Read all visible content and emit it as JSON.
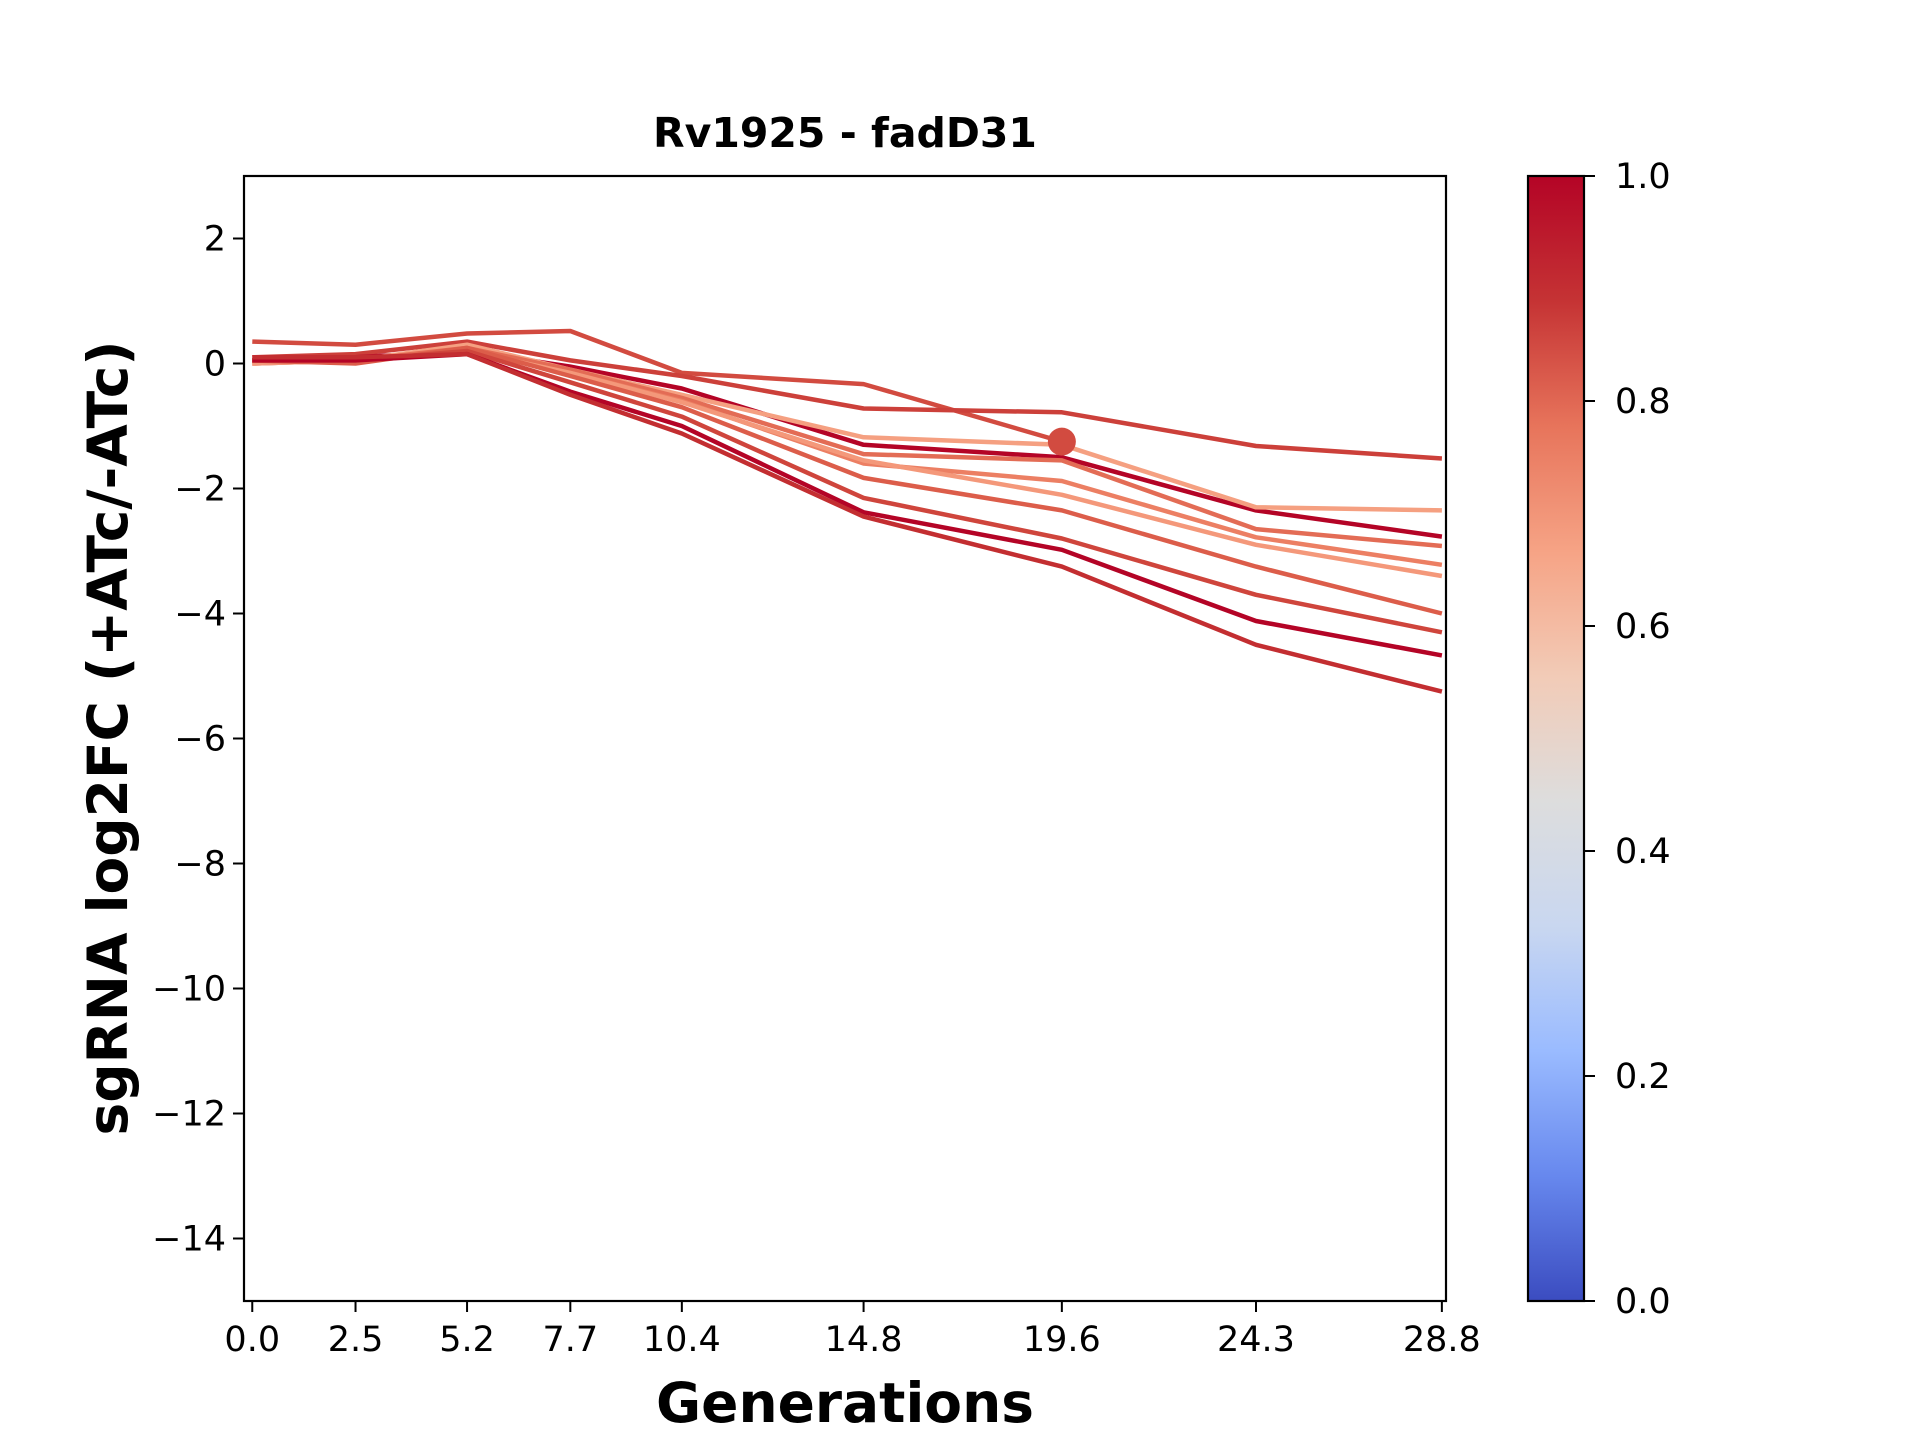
{
  "chart_data": {
    "type": "line",
    "title": "Rv1925 - fadD31",
    "xlabel": "Generations",
    "ylabel": "sgRNA log2FC (+ATc/-ATc)",
    "x": [
      0.0,
      2.5,
      5.2,
      7.7,
      10.4,
      14.8,
      19.6,
      24.3,
      28.8
    ],
    "x_tick_labels": [
      "0.0",
      "2.5",
      "5.2",
      "7.7",
      "10.4",
      "14.8",
      "19.6",
      "24.3",
      "28.8"
    ],
    "xlim": [
      -0.2,
      28.9
    ],
    "ylim": [
      -15,
      3
    ],
    "y_ticks": [
      2,
      0,
      -2,
      -4,
      -6,
      -8,
      -10,
      -12,
      -14
    ],
    "y_tick_labels": [
      "2",
      "0",
      "−2",
      "−4",
      "−6",
      "−8",
      "−10",
      "−12",
      "−14"
    ],
    "grid": false,
    "colorbar": {
      "colormap": "coolwarm",
      "range": [
        0.0,
        1.0
      ],
      "tick_values": [
        0.0,
        0.2,
        0.4,
        0.6,
        0.8,
        1.0
      ],
      "tick_labels": [
        "0.0",
        "0.2",
        "0.4",
        "0.6",
        "0.8",
        "1.0"
      ],
      "stops": [
        "#3b4cc0",
        "#6788ee",
        "#9abbff",
        "#c9d7f0",
        "#dddddd",
        "#f2cbb7",
        "#f6a385",
        "#e7745b",
        "#c53334",
        "#b40426"
      ]
    },
    "series": [
      {
        "values": [
          0.35,
          0.3,
          0.48,
          0.52,
          -0.15,
          -0.33,
          -1.25,
          null,
          null
        ],
        "color": "#d24b40"
      },
      {
        "values": [
          0.1,
          0.15,
          0.35,
          0.05,
          -0.2,
          -0.72,
          -0.78,
          -1.32,
          -1.52
        ],
        "color": "#cc403a"
      },
      {
        "values": [
          0.05,
          0.1,
          0.2,
          -0.05,
          -0.4,
          -1.3,
          -1.5,
          -2.35,
          -2.77
        ],
        "color": "#b40426"
      },
      {
        "values": [
          0.0,
          0.05,
          0.3,
          -0.1,
          -0.5,
          -1.18,
          -1.3,
          -2.3,
          -2.35
        ],
        "color": "#f5a081"
      },
      {
        "values": [
          0.05,
          0.05,
          0.25,
          -0.1,
          -0.55,
          -1.45,
          -1.55,
          -2.65,
          -2.92
        ],
        "color": "#e36c55"
      },
      {
        "values": [
          0.0,
          0.05,
          0.2,
          -0.15,
          -0.6,
          -1.6,
          -1.88,
          -2.78,
          -3.22
        ],
        "color": "#ec7f63"
      },
      {
        "values": [
          0.0,
          0.05,
          0.2,
          -0.15,
          -0.62,
          -1.55,
          -2.1,
          -2.9,
          -3.4
        ],
        "color": "#f4987a"
      },
      {
        "values": [
          0.05,
          0.0,
          0.25,
          -0.2,
          -0.7,
          -1.83,
          -2.35,
          -3.25,
          -4.0
        ],
        "color": "#dc5d4a"
      },
      {
        "values": [
          0.05,
          0.05,
          0.2,
          -0.3,
          -0.85,
          -2.15,
          -2.8,
          -3.7,
          -4.3
        ],
        "color": "#cf453c"
      },
      {
        "values": [
          0.05,
          0.05,
          0.15,
          -0.45,
          -1.0,
          -2.38,
          -2.98,
          -4.12,
          -4.67
        ],
        "color": "#b40426"
      },
      {
        "values": [
          0.1,
          0.1,
          0.15,
          -0.5,
          -1.12,
          -2.45,
          -3.25,
          -4.5,
          -5.25
        ],
        "color": "#c32e31"
      }
    ],
    "marker": {
      "x": 19.6,
      "y": -1.25,
      "color": "#d24b40"
    }
  }
}
